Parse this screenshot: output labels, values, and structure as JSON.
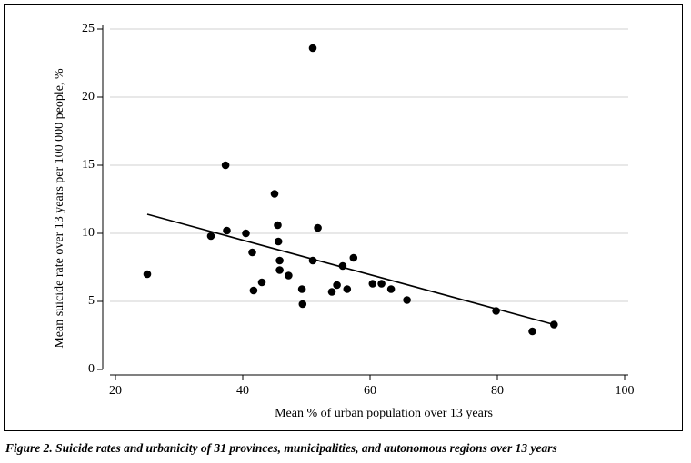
{
  "chart_data": {
    "type": "scatter",
    "title": "",
    "xlabel": "Mean % of urban population over 13 years",
    "ylabel": "Mean suicide rate over 13 years per 100 000 people, %",
    "xlim": [
      20,
      100
    ],
    "ylim": [
      0,
      25
    ],
    "xticks": [
      20,
      40,
      60,
      80,
      100
    ],
    "yticks": [
      0,
      5,
      10,
      15,
      20,
      25
    ],
    "grid": "horizontal",
    "legend": "none",
    "marker_color": "#000000",
    "line_color": "#000000",
    "grid_color": "#d9d9d9",
    "points": [
      {
        "x": 25.0,
        "y": 7.0
      },
      {
        "x": 35.0,
        "y": 9.8
      },
      {
        "x": 37.3,
        "y": 15.0
      },
      {
        "x": 37.5,
        "y": 10.2
      },
      {
        "x": 40.5,
        "y": 10.0
      },
      {
        "x": 41.5,
        "y": 8.6
      },
      {
        "x": 41.7,
        "y": 5.8
      },
      {
        "x": 43.0,
        "y": 6.4
      },
      {
        "x": 45.0,
        "y": 12.9
      },
      {
        "x": 45.5,
        "y": 10.6
      },
      {
        "x": 45.6,
        "y": 9.4
      },
      {
        "x": 45.8,
        "y": 8.0
      },
      {
        "x": 45.8,
        "y": 7.3
      },
      {
        "x": 47.2,
        "y": 6.9
      },
      {
        "x": 49.3,
        "y": 5.9
      },
      {
        "x": 49.4,
        "y": 4.8
      },
      {
        "x": 51.0,
        "y": 23.6
      },
      {
        "x": 51.0,
        "y": 8.0
      },
      {
        "x": 51.8,
        "y": 10.4
      },
      {
        "x": 54.0,
        "y": 5.7
      },
      {
        "x": 54.8,
        "y": 6.2
      },
      {
        "x": 55.7,
        "y": 7.6
      },
      {
        "x": 56.4,
        "y": 5.9
      },
      {
        "x": 57.4,
        "y": 8.2
      },
      {
        "x": 60.4,
        "y": 6.3
      },
      {
        "x": 61.8,
        "y": 6.3
      },
      {
        "x": 63.3,
        "y": 5.9
      },
      {
        "x": 65.8,
        "y": 5.1
      },
      {
        "x": 79.8,
        "y": 4.3
      },
      {
        "x": 85.5,
        "y": 2.8
      },
      {
        "x": 88.9,
        "y": 3.3
      }
    ],
    "fit_line": {
      "x": [
        25.0,
        88.9
      ],
      "y": [
        11.4,
        3.3
      ]
    }
  },
  "caption": "Figure 2. Suicide rates and urbanicity of 31 provinces, municipalities, and autonomous regions over 13 years"
}
